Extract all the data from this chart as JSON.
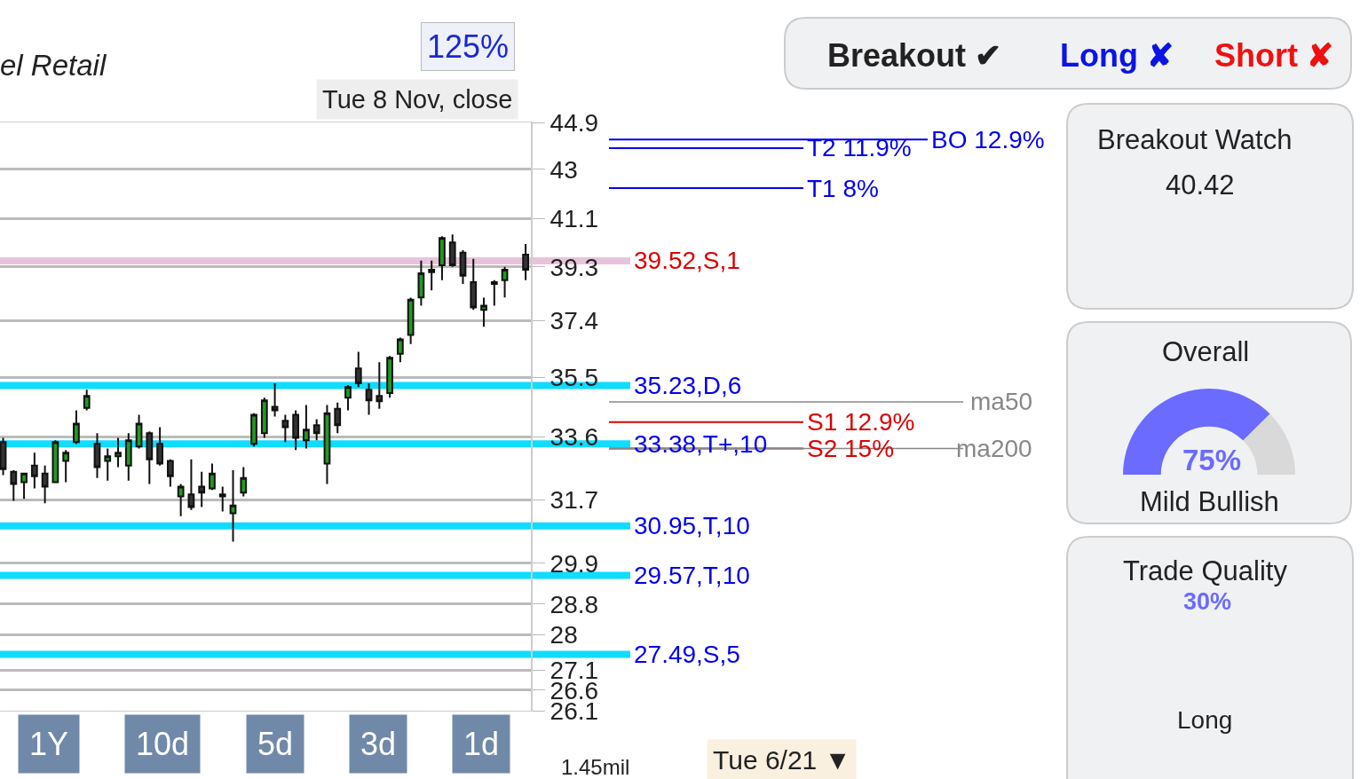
{
  "chart_data": [
    {
      "type": "candlestick",
      "title": "el Retail",
      "subtitle": "Tue 8 Nov, close",
      "categories": [
        null,
        null,
        null,
        null,
        null,
        null,
        null,
        null,
        null,
        null,
        null,
        null,
        null,
        null,
        null,
        null,
        null,
        null,
        null,
        null,
        null,
        null,
        null,
        null,
        null,
        null,
        null,
        null,
        null,
        null,
        null,
        null,
        null,
        null,
        null,
        null,
        null,
        null,
        null,
        null,
        null,
        null,
        null,
        null,
        null,
        null,
        null,
        null,
        null,
        null,
        null
      ],
      "ohlc": [
        [
          33.44,
          33.57,
          32.43,
          32.61
        ],
        [
          32.53,
          32.58,
          31.67,
          32.17
        ],
        [
          32.22,
          32.48,
          31.73,
          32.48
        ],
        [
          32.72,
          33.11,
          32.04,
          32.4
        ],
        [
          32.48,
          32.72,
          31.6,
          32.09
        ],
        [
          32.22,
          33.49,
          32.2,
          33.44
        ],
        [
          32.86,
          33.19,
          32.22,
          33.11
        ],
        [
          33.44,
          34.43,
          33.38,
          34.01
        ],
        [
          34.51,
          35.09,
          34.43,
          34.89
        ],
        [
          33.38,
          33.71,
          32.35,
          32.67
        ],
        [
          32.86,
          33.24,
          32.27,
          33.0
        ],
        [
          33.0,
          33.57,
          32.67,
          33.11
        ],
        [
          32.72,
          33.71,
          32.27,
          33.49
        ],
        [
          33.3,
          34.29,
          33.24,
          34.01
        ],
        [
          33.71,
          33.77,
          32.17,
          32.91
        ],
        [
          33.38,
          33.9,
          32.72,
          32.78
        ],
        [
          32.86,
          32.91,
          32.09,
          32.4
        ],
        [
          31.8,
          32.17,
          31.23,
          32.09
        ],
        [
          31.86,
          32.91,
          31.41,
          31.49
        ],
        [
          32.09,
          32.53,
          31.49,
          31.91
        ],
        [
          32.04,
          32.78,
          31.99,
          32.48
        ],
        [
          31.86,
          32.09,
          31.36,
          31.8
        ],
        [
          31.31,
          32.58,
          30.5,
          31.54
        ],
        [
          31.91,
          32.67,
          31.8,
          32.35
        ],
        [
          33.38,
          34.34,
          33.3,
          34.29
        ],
        [
          33.71,
          34.83,
          33.57,
          34.75
        ],
        [
          34.54,
          35.3,
          34.23,
          34.43
        ],
        [
          34.1,
          34.29,
          33.44,
          33.9
        ],
        [
          34.29,
          34.43,
          33.19,
          33.57
        ],
        [
          33.49,
          34.6,
          33.24,
          33.82
        ],
        [
          33.96,
          34.15,
          33.49,
          33.71
        ],
        [
          32.78,
          34.6,
          32.17,
          34.34
        ],
        [
          34.48,
          34.68,
          33.71,
          33.96
        ],
        [
          34.83,
          35.24,
          34.43,
          35.18
        ],
        [
          35.79,
          36.34,
          35.18,
          35.3
        ],
        [
          35.09,
          35.3,
          34.29,
          34.75
        ],
        [
          34.89,
          35.99,
          34.48,
          34.72
        ],
        [
          34.98,
          36.2,
          34.83,
          36.14
        ],
        [
          36.27,
          36.82,
          35.99,
          36.76
        ],
        [
          36.91,
          38.2,
          36.6,
          38.13
        ],
        [
          38.21,
          39.53,
          37.92,
          39.07
        ],
        [
          39.2,
          39.53,
          38.46,
          39.11
        ],
        [
          39.36,
          40.43,
          38.82,
          40.36
        ],
        [
          40.2,
          40.49,
          39.3,
          39.36
        ],
        [
          39.82,
          39.91,
          38.69,
          38.98
        ],
        [
          38.75,
          39.59,
          37.77,
          37.86
        ],
        [
          37.77,
          38.2,
          37.19,
          37.92
        ],
        [
          38.75,
          38.82,
          37.92,
          38.69
        ],
        [
          38.82,
          39.3,
          38.21,
          39.2
        ],
        null,
        [
          39.75,
          40.14,
          38.82,
          39.2
        ]
      ],
      "log": "y",
      "ylim": [
        26.1,
        44.9
      ],
      "yticks": [
        44.9,
        43,
        41.1,
        39.3,
        37.4,
        35.5,
        33.6,
        31.7,
        29.9,
        28.8,
        28,
        27.1,
        26.6,
        26.1
      ],
      "grid": "y",
      "tick_labels": "y",
      "ref_lines": [
        {
          "axis": "y",
          "value": 39.52,
          "label": "39.52,S,1",
          "color": "#e8c4dc"
        },
        {
          "axis": "y",
          "value": 35.23,
          "label": "35.23,D,6",
          "color": "#10dcff"
        },
        {
          "axis": "y",
          "value": 33.38,
          "label": "33.38,T+,10",
          "color": "#10dcff"
        },
        {
          "axis": "y",
          "value": 30.95,
          "label": "30.95,T,10",
          "color": "#10dcff"
        },
        {
          "axis": "y",
          "value": 29.57,
          "label": "29.57,T,10",
          "color": "#10dcff"
        },
        {
          "axis": "y",
          "value": 27.49,
          "label": "27.49,S,5",
          "color": "#10dcff"
        },
        {
          "axis": "y",
          "value": 43.85,
          "label": "T2 11.9%",
          "color": "#0000ee"
        },
        {
          "axis": "y",
          "value": 44.2,
          "label": "BO 12.9%",
          "color": "#0000ee"
        },
        {
          "axis": "y",
          "value": 42.26,
          "label": "T1 8%",
          "color": "#0000ee"
        },
        {
          "axis": "y",
          "value": 34.06,
          "label": "S1 12.9%",
          "color": "#dd0000"
        },
        {
          "axis": "y",
          "value": 33.24,
          "label": "S2 15%",
          "color": "#dd0000"
        },
        {
          "axis": "y",
          "value": 34.7,
          "label": "ma50",
          "color": "#888888"
        },
        {
          "axis": "y",
          "value": 33.24,
          "label": "ma200",
          "color": "#888888"
        }
      ],
      "annotations": [
        "125%",
        "1Y",
        "10d",
        "5d",
        "3d",
        "1d",
        "Tue 6/21 ▼",
        "1.45mil"
      ]
    },
    {
      "type": "donut",
      "title": "Overall",
      "subtitle": "Mild Bullish",
      "categories": [
        null,
        null
      ],
      "values": [
        75,
        25
      ],
      "colors": [
        "#6b6bff",
        "#d9d9d9"
      ],
      "value_labels": [
        "75%",
        null
      ]
    },
    {
      "type": "other",
      "annotations": [
        "Breakout ✔",
        "Long ✘",
        "Short ✘",
        "Breakout Watch",
        "40.42",
        "Trade Quality",
        "30%",
        "Long"
      ]
    }
  ]
}
